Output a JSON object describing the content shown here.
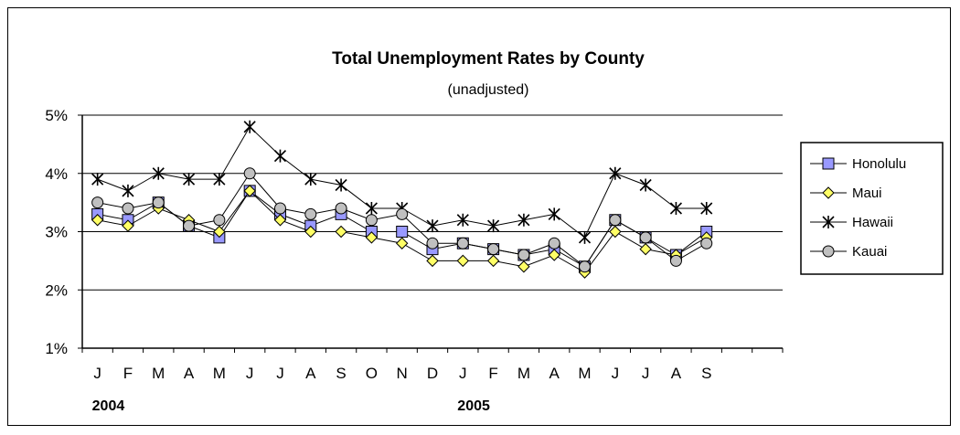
{
  "chart_data": {
    "type": "line",
    "title": "Total Unemployment Rates by County",
    "subtitle": "(unadjusted)",
    "xlabel": "",
    "ylabel": "",
    "ylim": [
      1,
      5
    ],
    "yticks": [
      "1%",
      "2%",
      "3%",
      "4%",
      "5%"
    ],
    "ytick_values": [
      1,
      2,
      3,
      4,
      5
    ],
    "categories": [
      "J",
      "F",
      "M",
      "A",
      "M",
      "J",
      "J",
      "A",
      "S",
      "O",
      "N",
      "D",
      "J",
      "F",
      "M",
      "A",
      "M",
      "J",
      "J",
      "A",
      "S"
    ],
    "category_slots": 23,
    "year_labels": [
      {
        "label": "2004",
        "index": 0
      },
      {
        "label": "2005",
        "index": 12
      }
    ],
    "grid": "horizontal",
    "legend_position": "right",
    "series": [
      {
        "name": "Honolulu",
        "marker": "square",
        "color": "#9999ff",
        "values": [
          3.3,
          3.2,
          3.5,
          3.1,
          2.9,
          3.7,
          3.3,
          3.1,
          3.3,
          3.0,
          3.0,
          2.7,
          2.8,
          2.7,
          2.6,
          2.7,
          2.4,
          3.2,
          2.9,
          2.6,
          3.0
        ]
      },
      {
        "name": "Maui",
        "marker": "diamond",
        "color": "#ffff66",
        "values": [
          3.2,
          3.1,
          3.4,
          3.2,
          3.0,
          3.7,
          3.2,
          3.0,
          3.0,
          2.9,
          2.8,
          2.5,
          2.5,
          2.5,
          2.4,
          2.6,
          2.3,
          3.0,
          2.7,
          2.6,
          2.9
        ]
      },
      {
        "name": "Hawaii",
        "marker": "asterisk",
        "color": "#000000",
        "values": [
          3.9,
          3.7,
          4.0,
          3.9,
          3.9,
          4.8,
          4.3,
          3.9,
          3.8,
          3.4,
          3.4,
          3.1,
          3.2,
          3.1,
          3.2,
          3.3,
          2.9,
          4.0,
          3.8,
          3.4,
          3.4
        ]
      },
      {
        "name": "Kauai",
        "marker": "circle",
        "color": "#c0c0c0",
        "values": [
          3.5,
          3.4,
          3.5,
          3.1,
          3.2,
          4.0,
          3.4,
          3.3,
          3.4,
          3.2,
          3.3,
          2.8,
          2.8,
          2.7,
          2.6,
          2.8,
          2.4,
          3.2,
          2.9,
          2.5,
          2.8
        ]
      }
    ]
  }
}
